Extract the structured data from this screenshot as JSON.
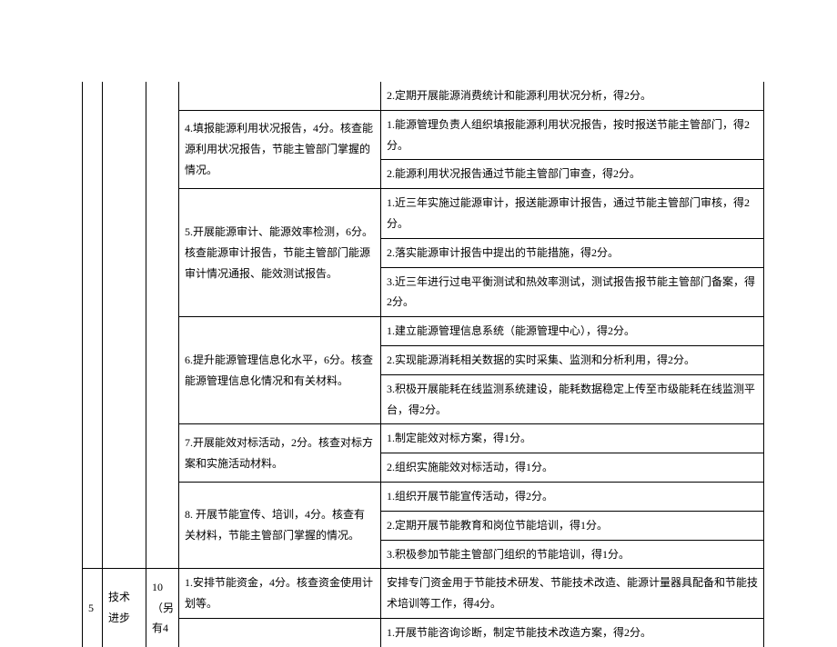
{
  "rows": {
    "r1_detail": "2.定期开展能源消费统计和能源利用状况分析，得2分。",
    "item4": "4.填报能源利用状况报告，4分。核查能源利用状况报告，节能主管部门掌握的情况。",
    "r2_detail": "1.能源管理负责人组织填报能源利用状况报告，按时报送节能主管部门，得2分。",
    "r3_detail": "2.能源利用状况报告通过节能主管部门审查，得2分。",
    "item5": "5.开展能源审计、能源效率检测，6分。核查能源审计报告，节能主管部门能源审计情况通报、能效测试报告。",
    "r4_detail": "1.近三年实施过能源审计，报送能源审计报告，通过节能主管部门审核，得2分。",
    "r5_detail": "2.落实能源审计报告中提出的节能措施，得2分。",
    "r6_detail": "3.近三年进行过电平衡测试和热效率测试，测试报告报节能主管部门备案，得2分。",
    "item6": "6.提升能源管理信息化水平，6分。核查能源管理信息化情况和有关材料。",
    "r7_detail": "1.建立能源管理信息系统（能源管理中心），得2分。",
    "r8_detail": "2.实现能源消耗相关数据的实时采集、监测和分析利用，得2分。",
    "r9_detail": "3.积极开展能耗在线监测系统建设，能耗数据稳定上传至市级能耗在线监测平台，得2分。",
    "item7": "7.开展能效对标活动，2分。核查对标方案和实施活动材料。",
    "r10_detail": "1.制定能效对标方案，得1分。",
    "r11_detail": "2.组织实施能效对标活动，得1分。",
    "item8": "8. 开展节能宣传、培训，4分。核查有关材料，节能主管部门掌握的情况。",
    "r12_detail": "1.组织开展节能宣传活动，得2分。",
    "r13_detail": "2.定期开展节能教育和岗位节能培训，得1分。",
    "r14_detail": "3.积极参加节能主管部门组织的节能培训，得1分。",
    "idx5": "5",
    "cat5": "技术进步",
    "score5": "10（另有4",
    "item9": "1.安排节能资金，4分。核查资金使用计划等。",
    "r15_detail": "安排专门资金用于节能技术研发、节能技术改造、能源计量器具配备和节能技术培训等工作，得4分。",
    "r16_detail": "1.开展节能咨询诊断，制定节能技术改造方案，得2分。"
  }
}
